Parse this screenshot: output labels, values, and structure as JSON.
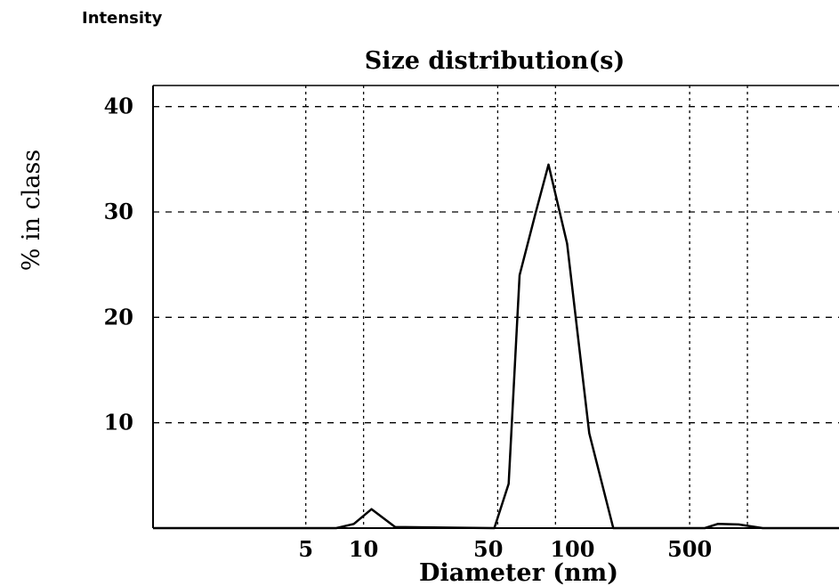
{
  "header": {
    "label": "Intensity"
  },
  "chart_data": {
    "type": "line",
    "title": "Size distribution(s)",
    "xlabel": "Diameter (nm)",
    "ylabel": "% in class",
    "x_scale": "log",
    "xlim": [
      0.8,
      3000
    ],
    "ylim": [
      0,
      42
    ],
    "x_ticks": [
      5,
      10,
      50,
      100,
      500
    ],
    "x_tick_labels": [
      "5",
      "10",
      "50",
      "100",
      "500"
    ],
    "x_gridlines": [
      5,
      10,
      50,
      100,
      500,
      1000
    ],
    "y_ticks": [
      10,
      20,
      30,
      40
    ],
    "y_tick_labels": [
      "10",
      "20",
      "30",
      "40"
    ],
    "grid": true,
    "series": [
      {
        "x": [
          0.8,
          7.2,
          8.9,
          11.0,
          14.6,
          48,
          57,
          65,
          79,
          92,
          115,
          150,
          200,
          330,
          390,
          600,
          700,
          900,
          1200,
          3000
        ],
        "y": [
          0,
          0,
          0.4,
          1.8,
          0.1,
          0,
          4.2,
          24,
          30,
          34.5,
          27,
          9,
          0,
          0,
          0,
          0,
          0.4,
          0.35,
          0,
          0
        ]
      }
    ]
  }
}
